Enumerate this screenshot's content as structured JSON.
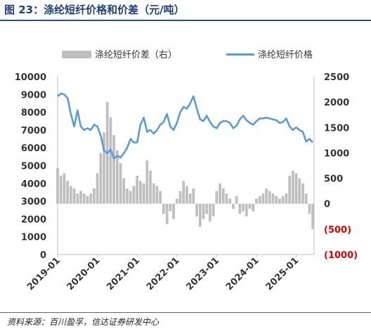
{
  "figure": {
    "title": "图 23：涤纶短纤价格和价差（元/吨）",
    "source": "资料来源：百川盈孚，信达证券研发中心"
  },
  "colors": {
    "price_line": "#5b9bd5",
    "spread_bars": "#bfbfbf",
    "negative_tick": "#e00000",
    "axis_text": "#333333",
    "title": "#1f3f73"
  },
  "chart_data": {
    "type": "line",
    "title": "",
    "legend": {
      "placement": "top",
      "entries": [
        "涤纶短纤价差（右）",
        "涤纶短纤价格"
      ]
    },
    "grid": false,
    "x_ticks": [
      "2019-01",
      "2020-01",
      "2021-01",
      "2022-01",
      "2023-01",
      "2024-01",
      "2025-01"
    ],
    "y_left": {
      "lim": [
        0,
        10000
      ],
      "ticks": [
        "0",
        "1000",
        "2000",
        "3000",
        "4000",
        "5000",
        "6000",
        "7000",
        "8000",
        "9000",
        "10000"
      ]
    },
    "y_right": {
      "lim": [
        -1000,
        2500
      ],
      "ticks": [
        "(1000)",
        "(500)",
        "0",
        "500",
        "1000",
        "1500",
        "2000",
        "2500"
      ],
      "negative_ticks": [
        "(1000)",
        "(500)"
      ]
    },
    "series": [
      {
        "name": "涤纶短纤价格",
        "kind": "line",
        "axis": "left",
        "x": [
          "2019-01",
          "2019-02",
          "2019-03",
          "2019-04",
          "2019-05",
          "2019-06",
          "2019-07",
          "2019-08",
          "2019-09",
          "2019-10",
          "2019-11",
          "2019-12",
          "2020-01",
          "2020-02",
          "2020-03",
          "2020-04",
          "2020-05",
          "2020-06",
          "2020-07",
          "2020-08",
          "2020-09",
          "2020-10",
          "2020-11",
          "2020-12",
          "2021-01",
          "2021-02",
          "2021-03",
          "2021-04",
          "2021-05",
          "2021-06",
          "2021-07",
          "2021-08",
          "2021-09",
          "2021-10",
          "2021-11",
          "2021-12",
          "2022-01",
          "2022-02",
          "2022-03",
          "2022-04",
          "2022-05",
          "2022-06",
          "2022-07",
          "2022-08",
          "2022-09",
          "2022-10",
          "2022-11",
          "2022-12",
          "2023-01",
          "2023-02",
          "2023-03",
          "2023-04",
          "2023-05",
          "2023-06",
          "2023-07",
          "2023-08",
          "2023-09",
          "2023-10",
          "2023-11",
          "2023-12",
          "2024-01",
          "2024-02",
          "2024-03",
          "2024-04",
          "2024-05",
          "2024-06",
          "2024-07",
          "2024-08",
          "2024-09",
          "2024-10",
          "2024-11",
          "2024-12",
          "2025-01",
          "2025-02",
          "2025-03",
          "2025-04",
          "2025-05",
          "2025-06"
        ],
        "values": [
          8900,
          9050,
          9000,
          8800,
          7900,
          7200,
          8100,
          7200,
          7000,
          7100,
          7000,
          7300,
          7200,
          6700,
          5850,
          5700,
          5900,
          5400,
          5550,
          5450,
          5700,
          6000,
          6500,
          6300,
          6300,
          7300,
          7700,
          6900,
          7000,
          6800,
          7000,
          7300,
          7450,
          7900,
          7200,
          7000,
          7400,
          8000,
          8300,
          8200,
          8500,
          8900,
          8200,
          7600,
          7500,
          7800,
          7450,
          7200,
          7100,
          7400,
          7500,
          7500,
          7400,
          7100,
          7250,
          7600,
          7800,
          7550,
          7400,
          7300,
          7500,
          7650,
          7650,
          7700,
          7650,
          7600,
          7550,
          7400,
          7450,
          7650,
          7200,
          7000,
          7150,
          7000,
          6900,
          6350,
          6500,
          6300
        ]
      },
      {
        "name": "涤纶短纤价差（右）",
        "kind": "bar",
        "axis": "right",
        "x": [
          "2019-01",
          "2019-02",
          "2019-03",
          "2019-04",
          "2019-05",
          "2019-06",
          "2019-07",
          "2019-08",
          "2019-09",
          "2019-10",
          "2019-11",
          "2019-12",
          "2020-01",
          "2020-02",
          "2020-03",
          "2020-04",
          "2020-05",
          "2020-06",
          "2020-07",
          "2020-08",
          "2020-09",
          "2020-10",
          "2020-11",
          "2020-12",
          "2021-01",
          "2021-02",
          "2021-03",
          "2021-04",
          "2021-05",
          "2021-06",
          "2021-07",
          "2021-08",
          "2021-09",
          "2021-10",
          "2021-11",
          "2021-12",
          "2022-01",
          "2022-02",
          "2022-03",
          "2022-04",
          "2022-05",
          "2022-06",
          "2022-07",
          "2022-08",
          "2022-09",
          "2022-10",
          "2022-11",
          "2022-12",
          "2023-01",
          "2023-02",
          "2023-03",
          "2023-04",
          "2023-05",
          "2023-06",
          "2023-07",
          "2023-08",
          "2023-09",
          "2023-10",
          "2023-11",
          "2023-12",
          "2024-01",
          "2024-02",
          "2024-03",
          "2024-04",
          "2024-05",
          "2024-06",
          "2024-07",
          "2024-08",
          "2024-09",
          "2024-10",
          "2024-11",
          "2024-12",
          "2025-01",
          "2025-02",
          "2025-03",
          "2025-04",
          "2025-05",
          "2025-06"
        ],
        "values": [
          700,
          550,
          600,
          450,
          350,
          300,
          200,
          250,
          200,
          150,
          200,
          300,
          600,
          1000,
          1400,
          2000,
          1700,
          1350,
          1050,
          800,
          500,
          300,
          250,
          350,
          550,
          450,
          400,
          850,
          650,
          400,
          350,
          250,
          -200,
          -400,
          -150,
          -300,
          100,
          250,
          450,
          350,
          200,
          300,
          -250,
          -450,
          -300,
          -200,
          -350,
          -250,
          250,
          400,
          300,
          200,
          100,
          -100,
          150,
          -200,
          -150,
          -250,
          -100,
          -150,
          100,
          150,
          200,
          300,
          250,
          200,
          150,
          100,
          150,
          200,
          550,
          650,
          600,
          500,
          400,
          200,
          -200,
          -500
        ]
      }
    ]
  }
}
